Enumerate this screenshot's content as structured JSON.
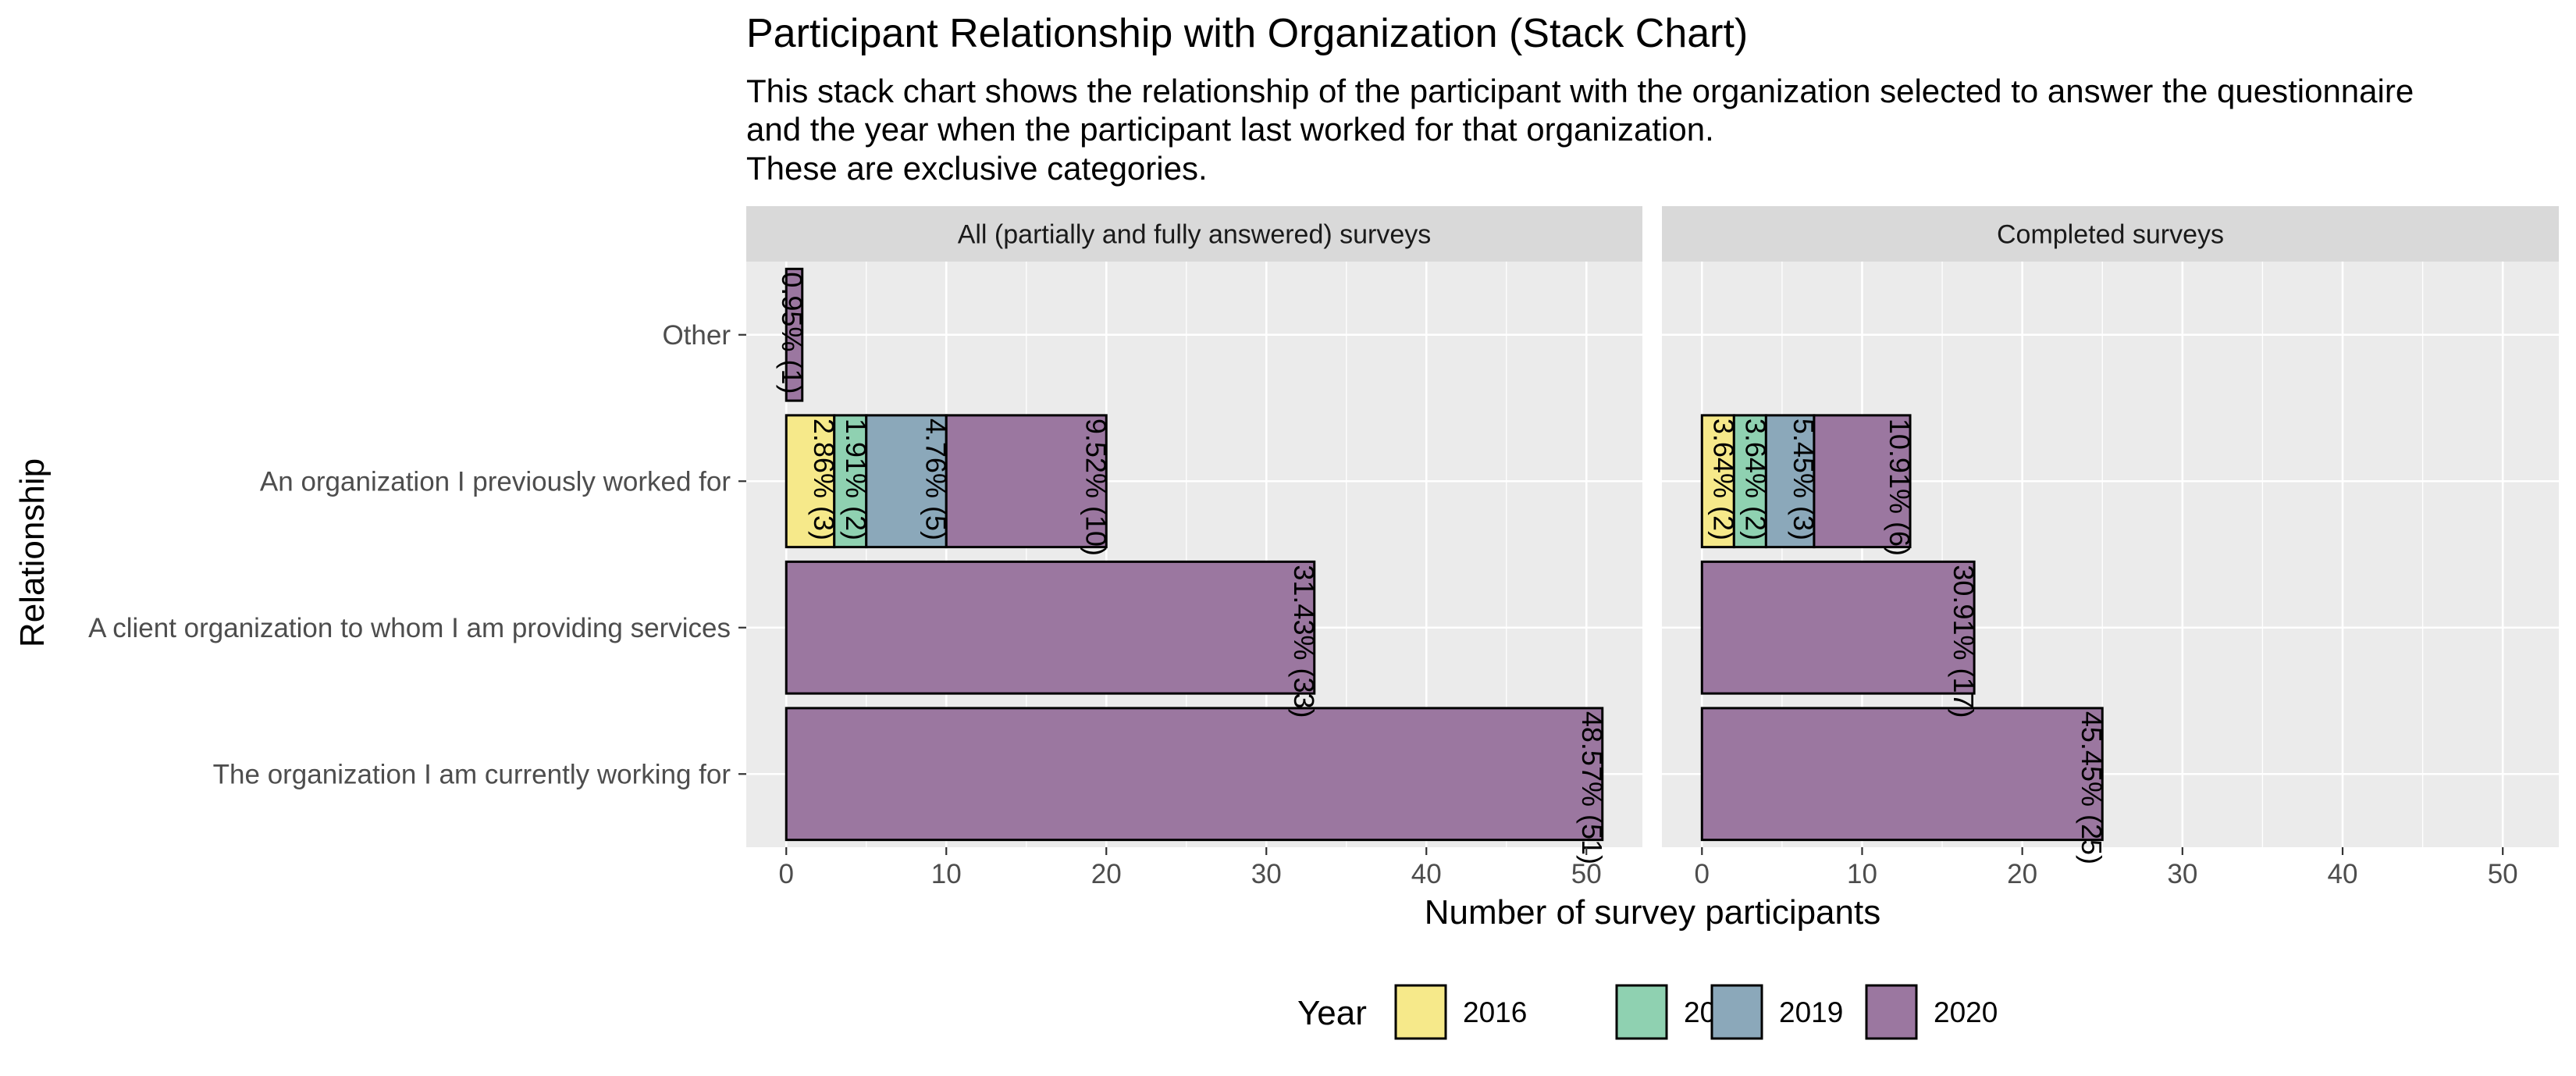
{
  "chart_data": {
    "type": "bar",
    "orientation": "horizontal",
    "stacked": true,
    "title": "Participant Relationship with Organization (Stack Chart)",
    "subtitle_lines": [
      "This stack chart shows the relationship of the participant with the organization selected to answer the questionnaire",
      "and the year when the participant last worked for that organization.",
      "These are exclusive categories."
    ],
    "xlabel": "Number of survey participants",
    "ylabel": "Relationship",
    "xlim": [
      -2.5,
      53.5
    ],
    "xticks": [
      0,
      10,
      20,
      30,
      40,
      50
    ],
    "categories": [
      "The organization I am currently working for",
      "A client organization to whom I am providing services",
      "An organization I previously worked for",
      "Other"
    ],
    "legend": {
      "title": "Year",
      "position": "bottom",
      "items": [
        {
          "name": "2016",
          "color": "#F6E98A"
        },
        {
          "name": "2018",
          "color": "#8FD1B1"
        },
        {
          "name": "2019",
          "color": "#8BA8BA"
        },
        {
          "name": "2020",
          "color": "#9B77A0"
        }
      ]
    },
    "panels": [
      {
        "strip": "All (partially and fully answered) surveys",
        "series": [
          {
            "name": "2016",
            "values": [
              0,
              0,
              3,
              0
            ],
            "labels": [
              "",
              "",
              "2.86% (3)",
              ""
            ]
          },
          {
            "name": "2018",
            "values": [
              0,
              0,
              2,
              0
            ],
            "labels": [
              "",
              "",
              "1.91% (2)",
              ""
            ]
          },
          {
            "name": "2019",
            "values": [
              0,
              0,
              5,
              0
            ],
            "labels": [
              "",
              "",
              "4.76% (5)",
              ""
            ]
          },
          {
            "name": "2020",
            "values": [
              51,
              33,
              10,
              1
            ],
            "labels": [
              "48.57% (51)",
              "31.43% (33)",
              "9.52% (10)",
              "0.95% (1)"
            ]
          }
        ]
      },
      {
        "strip": "Completed surveys",
        "series": [
          {
            "name": "2016",
            "values": [
              0,
              0,
              2,
              0
            ],
            "labels": [
              "",
              "",
              "3.64% (2)",
              ""
            ]
          },
          {
            "name": "2018",
            "values": [
              0,
              0,
              2,
              0
            ],
            "labels": [
              "",
              "",
              "3.64% (2)",
              ""
            ]
          },
          {
            "name": "2019",
            "values": [
              0,
              0,
              3,
              0
            ],
            "labels": [
              "",
              "",
              "5.45% (3)",
              ""
            ]
          },
          {
            "name": "2020",
            "values": [
              25,
              17,
              6,
              0
            ],
            "labels": [
              "45.45% (25)",
              "30.91% (17)",
              "10.91% (6)",
              ""
            ]
          }
        ]
      }
    ],
    "grid": true
  }
}
